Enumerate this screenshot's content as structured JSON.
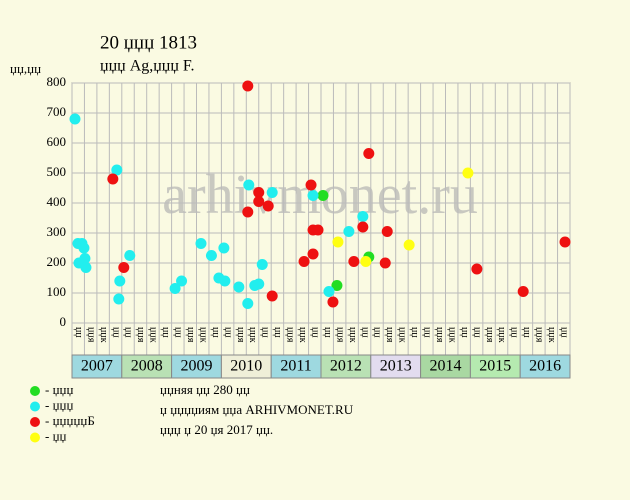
{
  "chart_data": {
    "type": "scatter",
    "title": "20 џџџ 1813",
    "subtitle": "џџџ Ag,џџџ F.",
    "y_label": "џџ,џџ",
    "watermark": "arhivmonet.ru",
    "notes": [
      "џџняя џџ 280 џџ",
      "џ џџџџиям џџа ARHIVMONET.RU",
      "џџџ џ 20 џя 2017 џџ."
    ],
    "xlim": [
      2007,
      2017
    ],
    "ylim": [
      0,
      800
    ],
    "yticks": [
      0,
      100,
      200,
      300,
      400,
      500,
      600,
      700,
      800
    ],
    "xticks": [
      2007,
      2007.25,
      2007.5,
      2007.75,
      2008,
      2008.25,
      2008.5,
      2008.75,
      2009,
      2009.25,
      2009.5,
      2009.75,
      2010,
      2010.25,
      2010.5,
      2010.75,
      2011,
      2011.25,
      2011.5,
      2011.75,
      2012,
      2012.25,
      2012.5,
      2012.75,
      2013,
      2013.25,
      2013.5,
      2013.75,
      2014,
      2014.25,
      2014.5,
      2014.75,
      2015,
      2015.25,
      2015.5,
      2015.75,
      2016,
      2016.25,
      2016.5,
      2016.75,
      2017
    ],
    "quarter_labels": [
      "џџ",
      "џџя",
      "џџк",
      "џџ"
    ],
    "years": [
      {
        "value": 2007,
        "color": "#9ed9e0"
      },
      {
        "value": 2008,
        "color": "#b9e1b4"
      },
      {
        "value": 2009,
        "color": "#9ed9e0"
      },
      {
        "value": 2010,
        "color": "#efefd8"
      },
      {
        "value": 2011,
        "color": "#9ed9e0"
      },
      {
        "value": 2012,
        "color": "#b9e1b4"
      },
      {
        "value": 2013,
        "color": "#e2dcef"
      },
      {
        "value": 2014,
        "color": "#a9d8a2"
      },
      {
        "value": 2015,
        "color": "#b5eab0"
      },
      {
        "value": 2016,
        "color": "#9ed9e0"
      }
    ],
    "grid": true,
    "series": [
      {
        "name": "- џџџ",
        "color": "#22dd22",
        "x": [
          2012.04,
          2012.32,
          2012.96
        ],
        "values": [
          425,
          125,
          220
        ]
      },
      {
        "name": "- џџџ",
        "color": "#22eeee",
        "x": [
          2007.06,
          2007.12,
          2007.2,
          2007.14,
          2007.24,
          2007.26,
          2007.28,
          2007.9,
          2007.96,
          2007.94,
          2008.16,
          2009.07,
          2009.2,
          2009.59,
          2009.8,
          2009.95,
          2010.07,
          2010.05,
          2010.35,
          2010.53,
          2010.55,
          2010.67,
          2010.75,
          2010.82,
          2011.02,
          2011.84,
          2012.16,
          2012.56,
          2012.84
        ],
        "values": [
          680,
          265,
          265,
          200,
          250,
          215,
          185,
          510,
          140,
          80,
          225,
          115,
          140,
          265,
          225,
          150,
          140,
          250,
          120,
          65,
          460,
          125,
          130,
          195,
          435,
          425,
          105,
          305,
          355
        ]
      },
      {
        "name": "- џџџџџБ",
        "color": "#ee1111",
        "x": [
          2007.82,
          2008.04,
          2010.53,
          2010.53,
          2010.75,
          2010.75,
          2010.94,
          2011.02,
          2011.66,
          2011.8,
          2011.84,
          2011.94,
          2011.84,
          2012.24,
          2012.66,
          2012.84,
          2012.96,
          2013.29,
          2013.33,
          2015.13,
          2016.06,
          2016.9
        ],
        "values": [
          480,
          185,
          790,
          370,
          435,
          405,
          390,
          90,
          205,
          460,
          310,
          310,
          230,
          70,
          205,
          320,
          565,
          200,
          305,
          180,
          105,
          270
        ]
      },
      {
        "name": "- џџ",
        "color": "#ffff11",
        "x": [
          2012.34,
          2012.9,
          2013.77,
          2014.95
        ],
        "values": [
          270,
          205,
          260,
          500
        ]
      }
    ]
  }
}
